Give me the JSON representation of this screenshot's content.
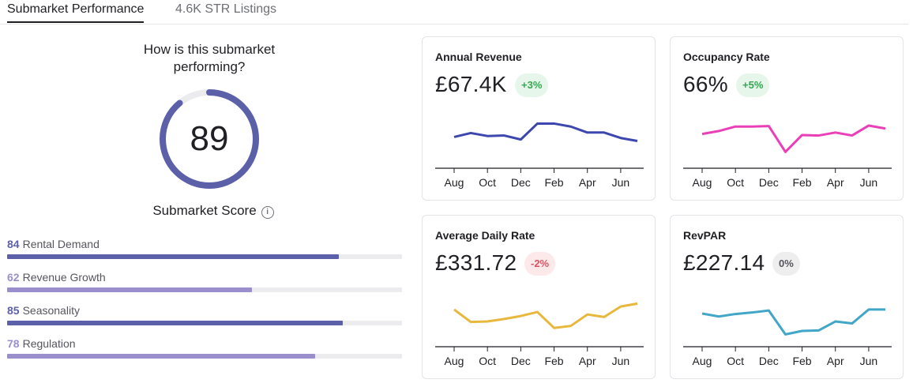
{
  "tabs": [
    {
      "label": "Submarket Performance",
      "active": true
    },
    {
      "label": "4.6K STR Listings",
      "active": false
    }
  ],
  "score_panel": {
    "question_line1": "How is this submarket",
    "question_line2": "performing?",
    "score": "89",
    "score_fraction": 0.89,
    "score_label": "Submarket Score",
    "info_icon": "info-icon",
    "metrics": [
      {
        "value": "84",
        "label": "Rental Demand",
        "pct": 84,
        "color": "#5c60a8"
      },
      {
        "value": "62",
        "label": "Revenue Growth",
        "pct": 62,
        "color": "#9a8fcc"
      },
      {
        "value": "85",
        "label": "Seasonality",
        "pct": 85,
        "color": "#5c60a8"
      },
      {
        "value": "78",
        "label": "Regulation",
        "pct": 78,
        "color": "#9a8fcc"
      }
    ]
  },
  "colors": {
    "gauge": "#5c60a8",
    "gauge_track": "#ececee"
  },
  "cards": [
    {
      "title": "Annual Revenue",
      "value": "£67.4K",
      "change": "+3%",
      "trend": "pos",
      "line_color": "#3d47ad",
      "months": [
        "Aug",
        "Oct",
        "Dec",
        "Feb",
        "Apr",
        "Jun"
      ],
      "points": [
        58,
        66,
        60,
        61,
        53,
        85,
        85,
        79,
        67,
        67,
        56,
        50
      ]
    },
    {
      "title": "Occupancy Rate",
      "value": "66%",
      "change": "+5%",
      "trend": "pos",
      "line_color": "#ea3fb6",
      "months": [
        "Aug",
        "Oct",
        "Dec",
        "Feb",
        "Apr",
        "Jun"
      ],
      "points": [
        64,
        70,
        79,
        79,
        80,
        28,
        62,
        61,
        67,
        61,
        81,
        75
      ]
    },
    {
      "title": "Average Daily Rate",
      "value": "£331.72",
      "change": "-2%",
      "trend": "neg",
      "line_color": "#e8b83c",
      "months": [
        "Aug",
        "Oct",
        "Dec",
        "Feb",
        "Apr",
        "Jun"
      ],
      "points": [
        70,
        45,
        46,
        51,
        57,
        65,
        33,
        37,
        60,
        55,
        76,
        82
      ]
    },
    {
      "title": "RevPAR",
      "value": "£227.14",
      "change": "0%",
      "trend": "neu",
      "line_color": "#41a6c7",
      "months": [
        "Aug",
        "Oct",
        "Dec",
        "Feb",
        "Apr",
        "Jun"
      ],
      "points": [
        62,
        56,
        61,
        64,
        68,
        20,
        27,
        28,
        46,
        42,
        70,
        70
      ]
    }
  ]
}
